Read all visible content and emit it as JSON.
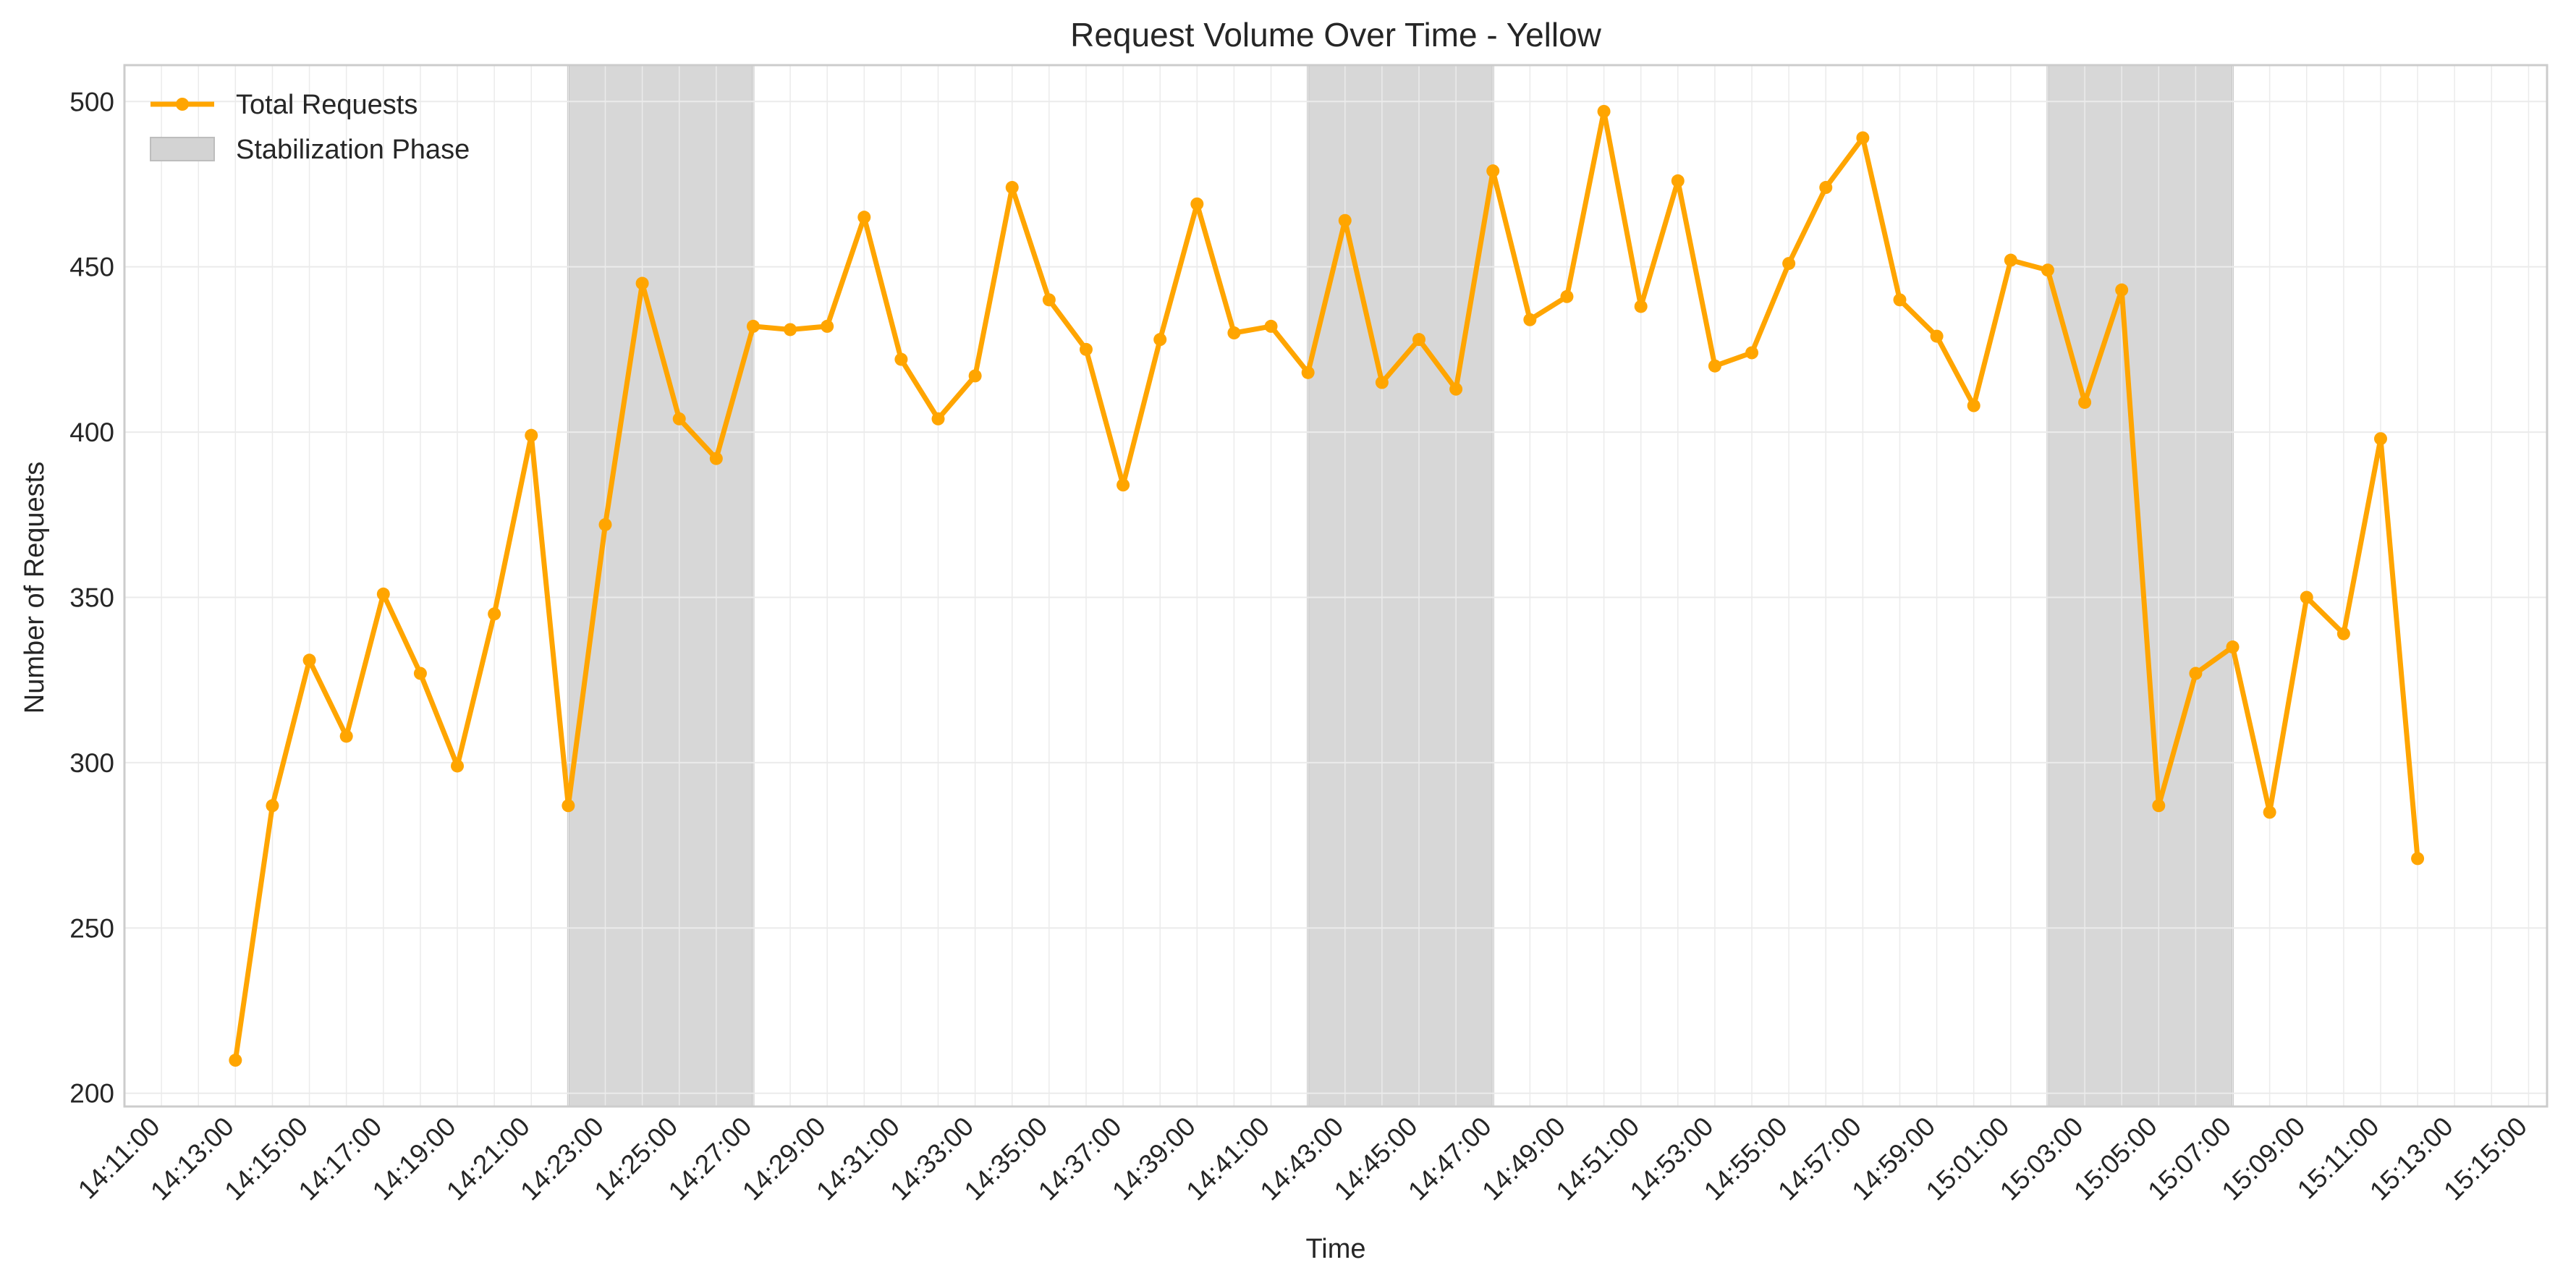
{
  "chart_data": {
    "type": "line",
    "title": "Request Volume Over Time - Yellow",
    "xlabel": "Time",
    "ylabel": "Number of Requests",
    "xlim": [
      "14:10:00",
      "15:15:30"
    ],
    "ylim": [
      196,
      511
    ],
    "x_ticks": [
      "14:11:00",
      "14:13:00",
      "14:15:00",
      "14:17:00",
      "14:19:00",
      "14:21:00",
      "14:23:00",
      "14:25:00",
      "14:27:00",
      "14:29:00",
      "14:31:00",
      "14:33:00",
      "14:35:00",
      "14:37:00",
      "14:39:00",
      "14:41:00",
      "14:43:00",
      "14:45:00",
      "14:47:00",
      "14:49:00",
      "14:51:00",
      "14:53:00",
      "14:55:00",
      "14:57:00",
      "14:59:00",
      "15:01:00",
      "15:03:00",
      "15:05:00",
      "15:07:00",
      "15:09:00",
      "15:11:00",
      "15:13:00",
      "15:15:00"
    ],
    "y_ticks": [
      200,
      250,
      300,
      350,
      400,
      450,
      500
    ],
    "grid": true,
    "legend": {
      "position": "top-left",
      "entries": [
        {
          "label": "Total Requests",
          "kind": "line",
          "color": "#FFA500"
        },
        {
          "label": "Stabilization Phase",
          "kind": "patch",
          "color": "#D3D3D3"
        }
      ]
    },
    "shaded_regions": [
      {
        "label": "Stabilization Phase",
        "start": "14:22:00",
        "end": "14:27:00"
      },
      {
        "label": "Stabilization Phase",
        "start": "14:42:00",
        "end": "14:47:00"
      },
      {
        "label": "Stabilization Phase",
        "start": "15:02:00",
        "end": "15:07:00"
      }
    ],
    "series": [
      {
        "name": "Total Requests",
        "color": "#FFA500",
        "x": [
          "14:13:00",
          "14:14:00",
          "14:15:00",
          "14:16:00",
          "14:17:00",
          "14:18:00",
          "14:19:00",
          "14:20:00",
          "14:21:00",
          "14:22:00",
          "14:23:00",
          "14:24:00",
          "14:25:00",
          "14:26:00",
          "14:27:00",
          "14:28:00",
          "14:29:00",
          "14:30:00",
          "14:31:00",
          "14:32:00",
          "14:33:00",
          "14:34:00",
          "14:35:00",
          "14:36:00",
          "14:37:00",
          "14:38:00",
          "14:39:00",
          "14:40:00",
          "14:41:00",
          "14:42:00",
          "14:43:00",
          "14:44:00",
          "14:45:00",
          "14:46:00",
          "14:47:00",
          "14:48:00",
          "14:49:00",
          "14:50:00",
          "14:51:00",
          "14:52:00",
          "14:53:00",
          "14:54:00",
          "14:55:00",
          "14:56:00",
          "14:57:00",
          "14:58:00",
          "14:59:00",
          "15:00:00",
          "15:01:00",
          "15:02:00",
          "15:03:00",
          "15:04:00",
          "15:05:00",
          "15:06:00",
          "15:07:00",
          "15:08:00",
          "15:09:00",
          "15:10:00",
          "15:11:00",
          "15:12:00"
        ],
        "values": [
          210,
          287,
          331,
          308,
          351,
          327,
          299,
          345,
          399,
          287,
          372,
          445,
          404,
          392,
          432,
          431,
          432,
          465,
          422,
          404,
          417,
          474,
          440,
          425,
          384,
          428,
          469,
          430,
          432,
          418,
          464,
          415,
          428,
          413,
          479,
          434,
          441,
          497,
          438,
          476,
          420,
          424,
          451,
          474,
          489,
          440,
          429,
          408,
          452,
          449,
          409,
          443,
          287,
          327,
          335,
          285,
          350,
          339,
          398,
          271
        ]
      }
    ]
  }
}
